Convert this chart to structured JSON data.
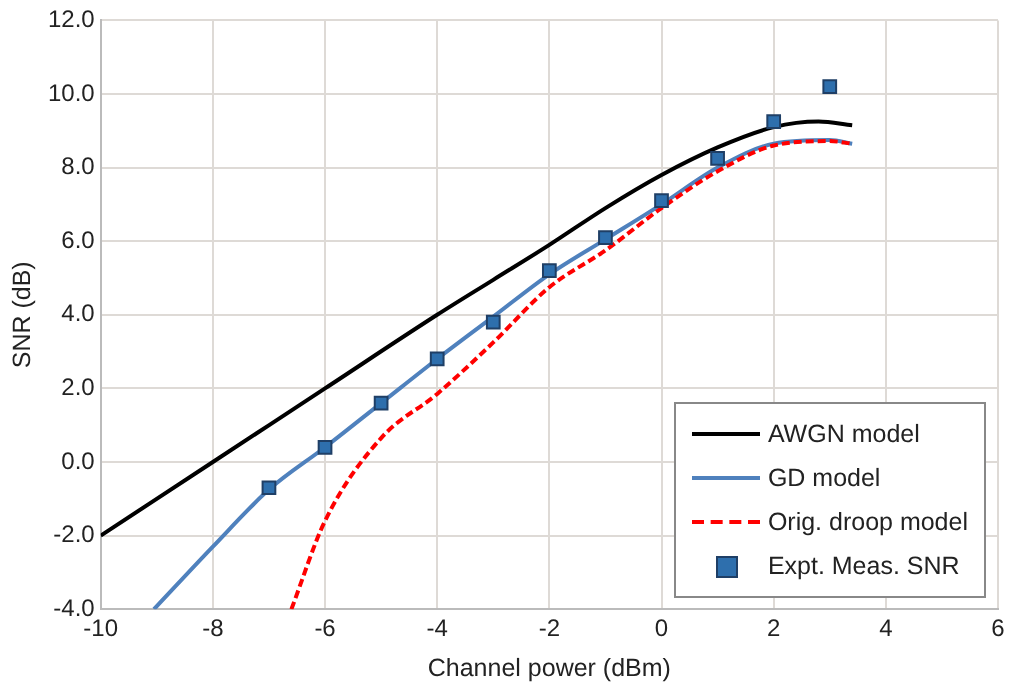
{
  "chart_data": {
    "type": "line",
    "xlabel": "Channel power (dBm)",
    "ylabel": "SNR (dB)",
    "xlim": [
      -10,
      6
    ],
    "xticks": [
      -10,
      -8,
      -6,
      -4,
      -2,
      0,
      2,
      4,
      6
    ],
    "ylim": [
      -4,
      12
    ],
    "yticks": [
      {
        "value": -4,
        "label": "-4.0"
      },
      {
        "value": -2,
        "label": "-2.0"
      },
      {
        "value": 0,
        "label": "0.0"
      },
      {
        "value": 2,
        "label": "2.0"
      },
      {
        "value": 4,
        "label": "4.0"
      },
      {
        "value": 6,
        "label": "6.0"
      },
      {
        "value": 8,
        "label": "8.0"
      },
      {
        "value": 10,
        "label": "10.0"
      },
      {
        "value": 12,
        "label": "12.0"
      }
    ],
    "grid": true,
    "legend": "bottom right",
    "series": [
      {
        "name": "AWGN model",
        "type": "line",
        "color": "#000000",
        "marker": "none",
        "line_style": "solid",
        "x": [
          -10,
          -8,
          -6,
          -4,
          -3,
          -2,
          -1,
          0,
          1,
          2,
          2.8,
          3.4
        ],
        "values": [
          -2,
          0,
          2,
          4,
          4.95,
          5.9,
          6.9,
          7.8,
          8.55,
          9.1,
          9.25,
          9.15
        ]
      },
      {
        "name": "GD model",
        "type": "line",
        "color": "#4f81bd",
        "marker": "none",
        "line_style": "solid",
        "x": [
          -9.05,
          -8,
          -7,
          -6,
          -5,
          -4,
          -3,
          -2,
          -1,
          0,
          1,
          2,
          3,
          3.4
        ],
        "values": [
          -4,
          -2.3,
          -0.75,
          0.4,
          1.6,
          2.8,
          3.95,
          5.1,
          6.05,
          7.0,
          8.0,
          8.65,
          8.75,
          8.65
        ]
      },
      {
        "name": "Orig. droop model",
        "type": "line",
        "color": "#ff0000",
        "marker": "none",
        "line_style": "dashed",
        "x": [
          -6.6,
          -6,
          -5,
          -4,
          -3,
          -2,
          -1,
          0,
          1,
          2,
          3,
          3.4
        ],
        "values": [
          -4,
          -1.6,
          0.65,
          1.85,
          3.25,
          4.75,
          5.75,
          6.9,
          7.9,
          8.6,
          8.72,
          8.65
        ]
      },
      {
        "name": "Expt. Meas. SNR",
        "type": "scatter",
        "color": "#2e6fad",
        "marker": "square",
        "x": [
          -7,
          -6,
          -5,
          -4,
          -3,
          -2,
          -1,
          0,
          1,
          2,
          3
        ],
        "values": [
          -0.7,
          0.4,
          1.6,
          2.8,
          3.8,
          5.2,
          6.1,
          7.1,
          8.25,
          9.25,
          10.2
        ]
      }
    ]
  }
}
